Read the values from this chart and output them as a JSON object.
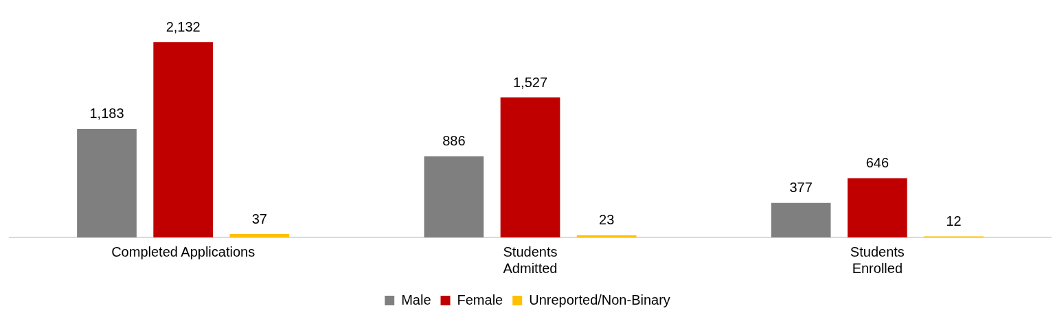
{
  "chart_data": {
    "type": "bar",
    "categories": [
      "Completed Applications",
      "Students\nAdmitted",
      "Students\nEnrolled"
    ],
    "series": [
      {
        "name": "Male",
        "color": "#7f7f7f",
        "values": [
          1183,
          886,
          377
        ],
        "value_labels": [
          "1,183",
          "886",
          "377"
        ]
      },
      {
        "name": "Female",
        "color": "#c00000",
        "values": [
          2132,
          1527,
          646
        ],
        "value_labels": [
          "2,132",
          "1,527",
          "646"
        ]
      },
      {
        "name": "Unreported/Non-Binary",
        "color": "#ffc000",
        "values": [
          37,
          23,
          12
        ],
        "value_labels": [
          "37",
          "23",
          "12"
        ]
      }
    ],
    "legend": "bottom",
    "grid": false
  }
}
